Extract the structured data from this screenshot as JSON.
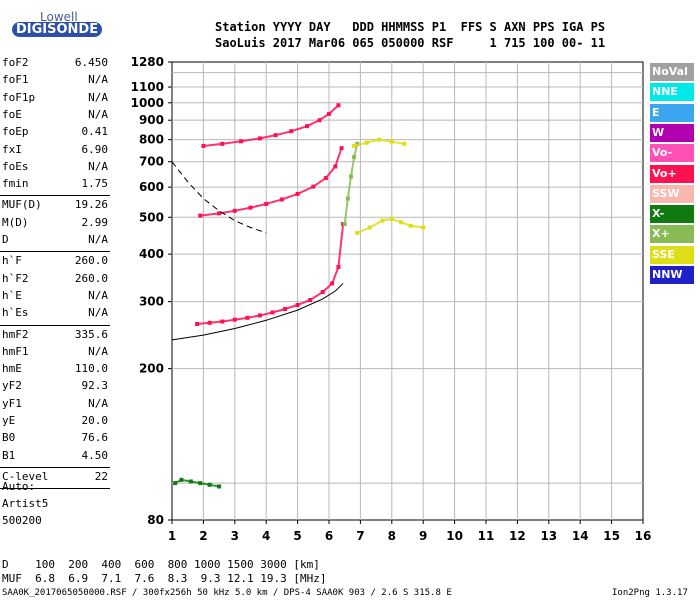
{
  "logo": {
    "line1": "Lowell",
    "line2": "DIGISONDE"
  },
  "header": {
    "row1": "Station YYYY DAY   DDD HHMMSS P1  FFS S AXN PPS IGA PS",
    "row2": "SaoLuis 2017 Mar06 065 050000 RSF     1 715 100 00- 11"
  },
  "params": [
    {
      "name": "foF2",
      "value": "6.450"
    },
    {
      "name": "foF1",
      "value": "N/A"
    },
    {
      "name": "foF1p",
      "value": "N/A"
    },
    {
      "name": "foE",
      "value": "N/A"
    },
    {
      "name": "foEp",
      "value": "0.41"
    },
    {
      "name": "fxI",
      "value": "6.90"
    },
    {
      "name": "foEs",
      "value": "N/A"
    },
    {
      "name": "fmin",
      "value": "1.75"
    },
    {
      "name": "MUF(D)",
      "value": "19.26"
    },
    {
      "name": "M(D)",
      "value": "2.99"
    },
    {
      "name": "D",
      "value": "N/A"
    },
    {
      "name": "h`F",
      "value": "260.0"
    },
    {
      "name": "h`F2",
      "value": "260.0"
    },
    {
      "name": "h`E",
      "value": "N/A"
    },
    {
      "name": "h`Es",
      "value": "N/A"
    },
    {
      "name": "hmF2",
      "value": "335.6"
    },
    {
      "name": "hmF1",
      "value": "N/A"
    },
    {
      "name": "hmE",
      "value": "110.0"
    },
    {
      "name": "yF2",
      "value": "92.3"
    },
    {
      "name": "yF1",
      "value": "N/A"
    },
    {
      "name": "yE",
      "value": "20.0"
    },
    {
      "name": "B0",
      "value": "76.6"
    },
    {
      "name": "B1",
      "value": "4.50"
    },
    {
      "name": "C-level",
      "value": "22"
    }
  ],
  "autoscaling": {
    "line1": "Auto:",
    "line2": "Artist5",
    "line3": "500200"
  },
  "legend": [
    {
      "label": "NoVal",
      "color": "#a0a0a0",
      "text_color": "#ffffff"
    },
    {
      "label": "NNE",
      "color": "#00e8e8",
      "text_color": "#ffffff"
    },
    {
      "label": "E",
      "color": "#3aa6f0",
      "text_color": "#ffffff"
    },
    {
      "label": "W",
      "color": "#b000b0",
      "text_color": "#ffffff"
    },
    {
      "label": "Vo-",
      "color": "#ff50b8",
      "text_color": "#ffffff"
    },
    {
      "label": "Vo+",
      "color": "#ff1050",
      "text_color": "#ffffff"
    },
    {
      "label": "SSW",
      "color": "#f8b8b0",
      "text_color": "#ffffff"
    },
    {
      "label": "X-",
      "color": "#107a10",
      "text_color": "#ffffff"
    },
    {
      "label": "X+",
      "color": "#88bb55",
      "text_color": "#ffffff"
    },
    {
      "label": "SSE",
      "color": "#dede18",
      "text_color": "#ffffff"
    },
    {
      "label": "NNW",
      "color": "#2020c8",
      "text_color": "#ffffff"
    }
  ],
  "footer": {
    "d_row": "D    100  200  400  600  800 1000 1500 3000 [km]",
    "muf_row": "MUF  6.8  6.9  7.1  7.6  8.3  9.3 12.1 19.3 [MHz]",
    "file_line": "SAA0K_2017065050000.RSF / 300fx256h 50 kHz 5.0 km / DPS-4 SAA0K 903 / 2.6 S 315.8 E",
    "version": "Ion2Png 1.3.17"
  },
  "chart_data": {
    "type": "scatter",
    "title": "",
    "xlabel": "",
    "ylabel": "",
    "xlim": [
      1,
      16
    ],
    "ylim": [
      80,
      1280
    ],
    "y_scale": "log",
    "x_ticks": [
      1,
      2,
      3,
      4,
      5,
      6,
      7,
      8,
      9,
      10,
      11,
      12,
      13,
      14,
      15,
      16
    ],
    "y_ticks": [
      80,
      200,
      300,
      400,
      500,
      600,
      700,
      800,
      900,
      1000,
      1100,
      1280
    ],
    "grid": true,
    "series": [
      {
        "name": "Vo+",
        "color": "#ff1050",
        "x": [
          1.8,
          2.2,
          2.6,
          3.0,
          3.4,
          3.8,
          4.2,
          4.6,
          5.0,
          5.4,
          5.8,
          6.1,
          6.3,
          6.45
        ],
        "y": [
          262,
          264,
          266,
          269,
          272,
          276,
          281,
          287,
          294,
          303,
          318,
          335,
          370,
          480
        ]
      },
      {
        "name": "Vo+",
        "color": "#ff1050",
        "x": [
          1.9,
          2.5,
          3.0,
          3.5,
          4.0,
          4.5,
          5.0,
          5.5,
          5.9,
          6.2,
          6.4
        ],
        "y": [
          505,
          512,
          520,
          530,
          542,
          557,
          576,
          602,
          634,
          680,
          760
        ]
      },
      {
        "name": "Vo+",
        "color": "#ff1050",
        "x": [
          2.0,
          2.6,
          3.2,
          3.8,
          4.3,
          4.8,
          5.3,
          5.7,
          6.0,
          6.3
        ],
        "y": [
          770,
          780,
          792,
          806,
          822,
          842,
          868,
          900,
          935,
          985
        ]
      },
      {
        "name": "X+",
        "color": "#88bb55",
        "x": [
          6.5,
          6.6,
          6.7,
          6.8,
          6.9
        ],
        "y": [
          480,
          560,
          640,
          720,
          780
        ]
      },
      {
        "name": "SSE",
        "color": "#dede18",
        "x": [
          6.9,
          7.3,
          7.7,
          8.0,
          8.3,
          8.6,
          9.0
        ],
        "y": [
          455,
          470,
          490,
          495,
          485,
          475,
          470
        ]
      },
      {
        "name": "SSE",
        "color": "#dede18",
        "x": [
          6.8,
          7.2,
          7.6,
          8.0,
          8.4
        ],
        "y": [
          770,
          785,
          800,
          790,
          780
        ]
      },
      {
        "name": "X-",
        "color": "#107a10",
        "x": [
          1.1,
          1.3,
          1.6,
          1.9,
          2.2,
          2.5
        ],
        "y": [
          100,
          102,
          101,
          100,
          99,
          98
        ]
      }
    ],
    "profile_solid": {
      "x": [
        1.0,
        2.0,
        3.0,
        4.0,
        5.0,
        5.8,
        6.2,
        6.45
      ],
      "y": [
        238,
        245,
        255,
        268,
        285,
        305,
        320,
        335
      ]
    },
    "profile_dashed": {
      "x": [
        1.0,
        1.5,
        2.0,
        2.5,
        3.0,
        3.5,
        4.0
      ],
      "y": [
        700,
        620,
        560,
        520,
        490,
        470,
        455
      ]
    }
  }
}
